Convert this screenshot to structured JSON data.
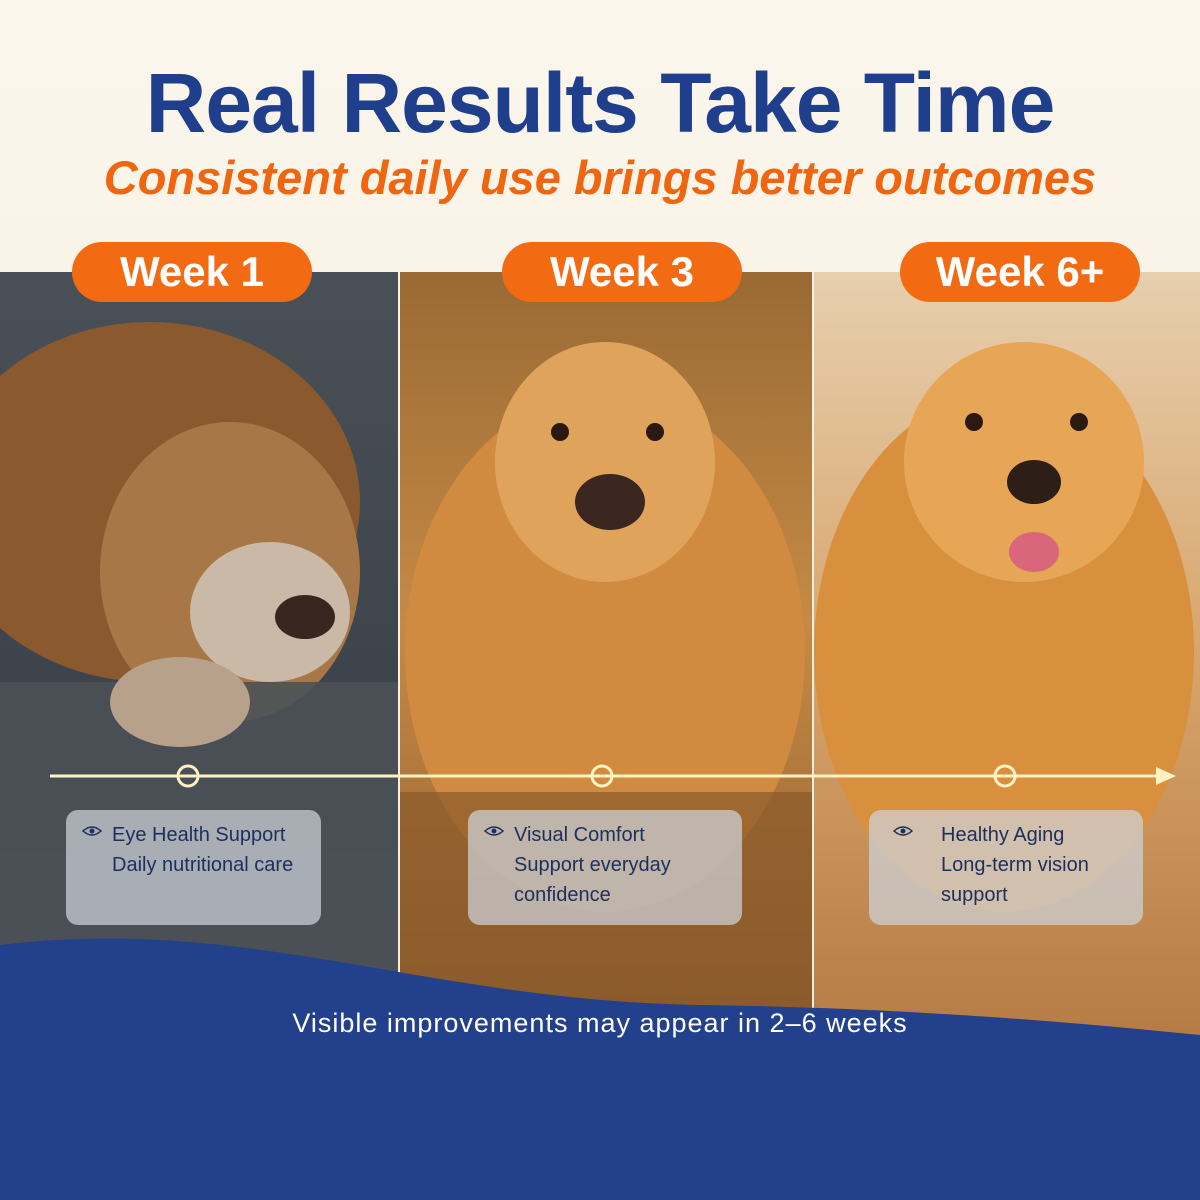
{
  "header": {
    "title": "Real Results Take Time",
    "subtitle": "Consistent daily use brings better outcomes"
  },
  "panels": [
    {
      "week": "Week 1",
      "title": "Eye Health Support",
      "description": "Daily nutritional care"
    },
    {
      "week": "Week 3",
      "title": "Visual Comfort",
      "description": "Support everyday confidence"
    },
    {
      "week": "Week 6+",
      "title": "Healthy Aging",
      "description": "Long-term vision support"
    }
  ],
  "footer": "Visible improvements may appear in 2–6 weeks"
}
